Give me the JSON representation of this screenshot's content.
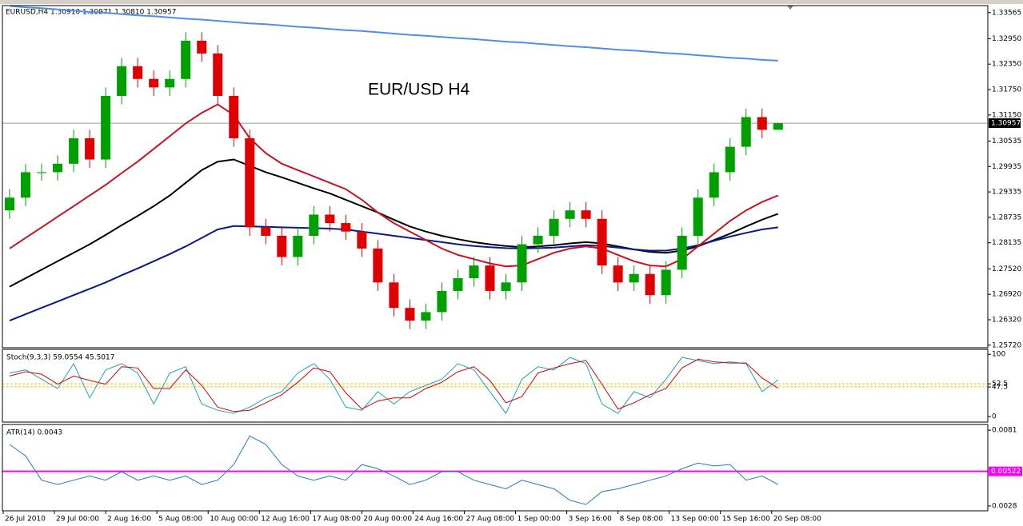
{
  "chart_data": [
    {
      "type": "candlestick",
      "title": "EURUSD,H4  1.30910 1.30971 1.30810 1.30957",
      "annotation": "EUR/USD H4",
      "x": [
        2,
        7,
        12,
        17,
        22,
        27,
        32,
        37,
        42,
        47,
        52,
        57,
        62,
        67,
        72,
        77,
        82,
        87,
        92,
        97,
        102,
        107,
        112,
        117,
        122,
        127,
        132,
        137,
        142,
        147,
        152,
        157,
        162,
        167,
        172,
        177,
        182,
        187,
        192,
        197,
        202,
        207,
        212,
        217,
        222,
        227,
        232,
        237,
        242
      ],
      "open": [
        1.289,
        1.292,
        1.298,
        1.298,
        1.3,
        1.306,
        1.301,
        1.316,
        1.323,
        1.32,
        1.318,
        1.32,
        1.329,
        1.326,
        1.316,
        1.306,
        1.285,
        1.283,
        1.278,
        1.283,
        1.288,
        1.286,
        1.284,
        1.28,
        1.272,
        1.266,
        1.263,
        1.265,
        1.27,
        1.273,
        1.276,
        1.27,
        1.272,
        1.281,
        1.283,
        1.287,
        1.289,
        1.287,
        1.276,
        1.272,
        1.274,
        1.269,
        1.275,
        1.283,
        1.292,
        1.298,
        1.304,
        1.311,
        1.308
      ],
      "high": [
        1.294,
        1.3,
        1.3,
        1.302,
        1.308,
        1.308,
        1.318,
        1.325,
        1.325,
        1.322,
        1.322,
        1.331,
        1.331,
        1.328,
        1.318,
        1.308,
        1.287,
        1.285,
        1.285,
        1.29,
        1.29,
        1.288,
        1.286,
        1.282,
        1.274,
        1.268,
        1.267,
        1.272,
        1.275,
        1.278,
        1.278,
        1.274,
        1.283,
        1.285,
        1.289,
        1.291,
        1.291,
        1.289,
        1.278,
        1.276,
        1.276,
        1.277,
        1.285,
        1.294,
        1.3,
        1.306,
        1.313,
        1.313,
        1.30971
      ],
      "low": [
        1.287,
        1.29,
        1.296,
        1.296,
        1.298,
        1.299,
        1.299,
        1.314,
        1.318,
        1.316,
        1.316,
        1.318,
        1.324,
        1.314,
        1.304,
        1.283,
        1.281,
        1.276,
        1.276,
        1.281,
        1.284,
        1.282,
        1.278,
        1.27,
        1.264,
        1.261,
        1.261,
        1.263,
        1.268,
        1.271,
        1.268,
        1.268,
        1.27,
        1.279,
        1.281,
        1.285,
        1.285,
        1.274,
        1.27,
        1.27,
        1.267,
        1.267,
        1.273,
        1.281,
        1.29,
        1.296,
        1.302,
        1.306,
        1.3081
      ],
      "close": [
        1.292,
        1.298,
        1.298,
        1.3,
        1.306,
        1.301,
        1.316,
        1.323,
        1.32,
        1.318,
        1.32,
        1.329,
        1.326,
        1.316,
        1.306,
        1.285,
        1.283,
        1.278,
        1.283,
        1.288,
        1.286,
        1.284,
        1.28,
        1.272,
        1.266,
        1.263,
        1.265,
        1.27,
        1.273,
        1.276,
        1.27,
        1.272,
        1.281,
        1.283,
        1.287,
        1.289,
        1.287,
        1.276,
        1.272,
        1.274,
        1.269,
        1.275,
        1.283,
        1.292,
        1.298,
        1.304,
        1.311,
        1.308,
        1.30957
      ],
      "up_color": "#00a000",
      "down_color": "#e00000",
      "series": [
        {
          "color": "#4f8fe6",
          "values": [
            1.3372,
            1.3369,
            1.3367,
            1.3364,
            1.3361,
            1.3358,
            1.3356,
            1.3353,
            1.335,
            1.3348,
            1.3345,
            1.3342,
            1.334,
            1.3337,
            1.3334,
            1.3331,
            1.3329,
            1.3326,
            1.3323,
            1.3321,
            1.3318,
            1.3315,
            1.3313,
            1.331,
            1.3307,
            1.3304,
            1.3302,
            1.3299,
            1.3296,
            1.3294,
            1.3291,
            1.3288,
            1.3286,
            1.3283,
            1.328,
            1.3277,
            1.3275,
            1.3272,
            1.3269,
            1.3267,
            1.3264,
            1.3261,
            1.3259,
            1.3256,
            1.3253,
            1.325,
            1.3248,
            1.3245,
            1.3243
          ]
        },
        {
          "color": "#000000",
          "values": [
            1.271,
            1.273,
            1.275,
            1.277,
            1.279,
            1.281,
            1.2832,
            1.2855,
            1.2877,
            1.29,
            1.2925,
            1.2955,
            1.2985,
            1.3005,
            1.301,
            1.2995,
            1.298,
            1.2968,
            1.2955,
            1.2942,
            1.293,
            1.2915,
            1.29,
            1.2885,
            1.2868,
            1.2852,
            1.284,
            1.283,
            1.2822,
            1.2815,
            1.281,
            1.2806,
            1.2803,
            1.2805,
            1.2808,
            1.2812,
            1.2815,
            1.2812,
            1.2805,
            1.2798,
            1.2792,
            1.279,
            1.2795,
            1.2805,
            1.282,
            1.2835,
            1.2852,
            1.2868,
            1.2882
          ]
        },
        {
          "color": "#0a1a8c",
          "values": [
            1.263,
            1.2645,
            1.266,
            1.2675,
            1.269,
            1.2705,
            1.272,
            1.2737,
            1.2753,
            1.277,
            1.2787,
            1.2805,
            1.2825,
            1.2845,
            1.2853,
            1.2852,
            1.2851,
            1.285,
            1.2849,
            1.2848,
            1.2847,
            1.2845,
            1.284,
            1.2835,
            1.283,
            1.2825,
            1.282,
            1.2815,
            1.281,
            1.2806,
            1.2803,
            1.2801,
            1.28,
            1.2801,
            1.2802,
            1.2805,
            1.2808,
            1.2806,
            1.2802,
            1.2798,
            1.2795,
            1.2795,
            1.28,
            1.2808,
            1.2818,
            1.2828,
            1.2837,
            1.2845,
            1.285
          ]
        },
        {
          "color": "#d01020",
          "values": [
            1.28,
            1.2825,
            1.285,
            1.2875,
            1.29,
            1.2925,
            1.295,
            1.2978,
            1.3005,
            1.3035,
            1.3065,
            1.3095,
            1.312,
            1.314,
            1.3115,
            1.306,
            1.3025,
            1.3,
            1.2985,
            1.297,
            1.2955,
            1.294,
            1.2915,
            1.2885,
            1.286,
            1.284,
            1.282,
            1.28,
            1.2785,
            1.2775,
            1.2765,
            1.2758,
            1.276,
            1.2775,
            1.279,
            1.28,
            1.2805,
            1.28,
            1.2785,
            1.277,
            1.276,
            1.2758,
            1.2775,
            1.2805,
            1.2835,
            1.2865,
            1.289,
            1.291,
            1.2925
          ]
        }
      ],
      "current_price": 1.30957,
      "xlim": [
        -0.25,
        307.5
      ],
      "xticks": [
        {
          "value": 0,
          "label": "26 Jul 2010"
        },
        {
          "value": 16,
          "label": "29 Jul 00:00"
        },
        {
          "value": 32,
          "label": "2 Aug 16:00"
        },
        {
          "value": 48,
          "label": "5 Aug 08:00"
        },
        {
          "value": 64,
          "label": "10 Aug 00:00"
        },
        {
          "value": 80,
          "label": "12 Aug 16:00"
        },
        {
          "value": 96,
          "label": "17 Aug 08:00"
        },
        {
          "value": 112,
          "label": "20 Aug 00:00"
        },
        {
          "value": 128,
          "label": "24 Aug 16:00"
        },
        {
          "value": 144,
          "label": "27 Aug 08:00"
        },
        {
          "value": 160,
          "label": "1 Sep 00:00"
        },
        {
          "value": 176,
          "label": "3 Sep 16:00"
        },
        {
          "value": 192,
          "label": "8 Sep 08:00"
        },
        {
          "value": 208,
          "label": "13 Sep 00:00"
        },
        {
          "value": 224,
          "label": "15 Sep 16:00"
        },
        {
          "value": 240,
          "label": "20 Sep 08:00"
        }
      ],
      "ylim": [
        1.2566,
        1.3373
      ],
      "yticks": [
        1.33565,
        {
          "value": 1.3295,
          "label": "1.32950"
        },
        {
          "value": 1.3235,
          "label": "1.32350"
        },
        {
          "value": 1.3175,
          "label": "1.31750"
        },
        {
          "value": 1.3115,
          "label": "1.31150"
        },
        1.30535,
        1.29935,
        1.29335,
        1.28735,
        1.28135,
        {
          "value": 1.2752,
          "label": "1.27520"
        },
        {
          "value": 1.2692,
          "label": "1.26920"
        },
        {
          "value": 1.2632,
          "label": "1.26320"
        },
        {
          "value": 1.2572,
          "label": "1.25720"
        }
      ]
    },
    {
      "type": "line",
      "title": "Stoch(9,3,3) 59.0554 45.5017",
      "x": [
        2,
        7,
        12,
        17,
        22,
        27,
        32,
        37,
        42,
        47,
        52,
        57,
        62,
        67,
        72,
        77,
        82,
        87,
        92,
        97,
        102,
        107,
        112,
        117,
        122,
        127,
        132,
        137,
        142,
        147,
        152,
        157,
        162,
        167,
        172,
        177,
        182,
        187,
        192,
        197,
        202,
        207,
        212,
        217,
        222,
        227,
        232,
        237,
        242
      ],
      "series": [
        {
          "color": "#20a0c0",
          "values": [
            70,
            75,
            60,
            45,
            85,
            30,
            75,
            85,
            70,
            20,
            70,
            80,
            20,
            10,
            5,
            15,
            30,
            40,
            70,
            85,
            60,
            15,
            10,
            40,
            20,
            40,
            50,
            60,
            85,
            75,
            40,
            5,
            60,
            80,
            75,
            95,
            85,
            20,
            5,
            40,
            30,
            60,
            95,
            90,
            85,
            88,
            85,
            40,
            59.0554
          ]
        },
        {
          "color": "#e00000",
          "values": [
            65,
            72,
            68,
            52,
            65,
            58,
            52,
            80,
            78,
            45,
            45,
            75,
            50,
            15,
            8,
            10,
            22,
            35,
            55,
            78,
            72,
            38,
            12,
            25,
            30,
            30,
            45,
            55,
            72,
            80,
            58,
            22,
            32,
            70,
            78,
            85,
            90,
            52,
            12,
            22,
            35,
            45,
            78,
            92,
            88,
            86,
            86,
            62,
            45.5017
          ]
        }
      ],
      "levels": [
        52.5,
        47.5
      ],
      "level_color": "#e8c800",
      "xlim": [
        -0.25,
        307.5
      ],
      "ylim": [
        -9,
        108
      ],
      "yticks": [
        100,
        52.5,
        47.5,
        0
      ]
    },
    {
      "type": "line",
      "title": "ATR(14) 0.0043",
      "x": [
        2,
        7,
        12,
        17,
        22,
        27,
        32,
        37,
        42,
        47,
        52,
        57,
        62,
        67,
        72,
        77,
        82,
        87,
        92,
        97,
        102,
        107,
        112,
        117,
        122,
        127,
        132,
        137,
        142,
        147,
        152,
        157,
        162,
        167,
        172,
        177,
        182,
        187,
        192,
        197,
        202,
        207,
        212,
        217,
        222,
        227,
        232,
        237,
        242
      ],
      "series": [
        {
          "color": "#1e78e0",
          "values": [
            0.0071,
            0.0063,
            0.0046,
            0.0043,
            0.0046,
            0.0049,
            0.0046,
            0.0052,
            0.0046,
            0.0049,
            0.0046,
            0.0049,
            0.0043,
            0.0046,
            0.0057,
            0.0077,
            0.0071,
            0.0057,
            0.0049,
            0.0046,
            0.0049,
            0.0046,
            0.0057,
            0.0054,
            0.0049,
            0.0043,
            0.0046,
            0.0052,
            0.0052,
            0.0046,
            0.0043,
            0.004,
            0.0046,
            0.0043,
            0.004,
            0.0032,
            0.0029,
            0.0038,
            0.004,
            0.0043,
            0.0046,
            0.0049,
            0.0054,
            0.0058,
            0.0056,
            0.0057,
            0.0046,
            0.0049,
            0.0043
          ]
        }
      ],
      "level": 0.00522,
      "level_color": "#ff00ff",
      "xlim": [
        -0.25,
        307.5
      ],
      "ylim": [
        0.00246,
        0.0085
      ],
      "yticks": [
        0.0081,
        0.0028
      ]
    }
  ]
}
